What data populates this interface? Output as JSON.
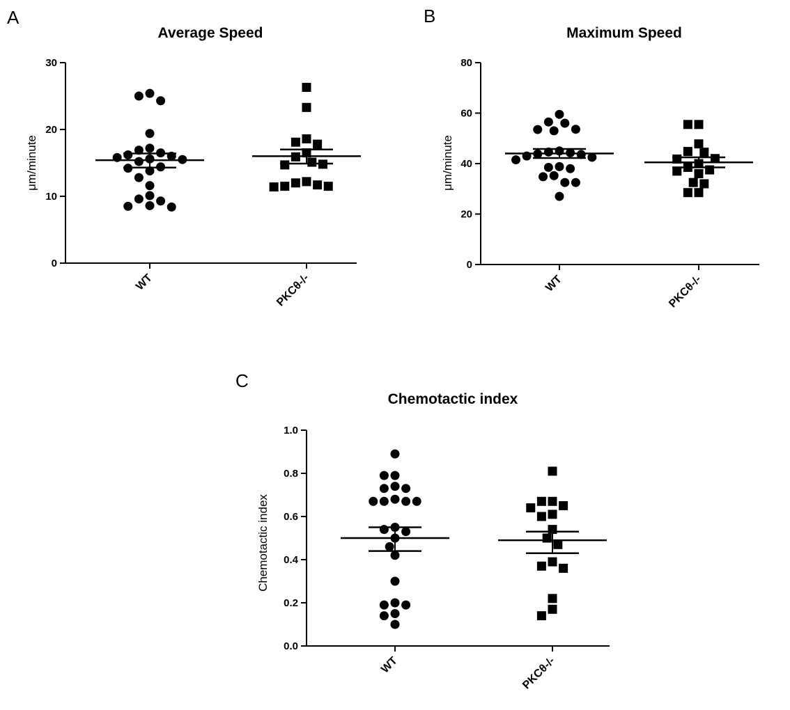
{
  "chart_data": [
    {
      "type": "scatter",
      "panel_label": "A",
      "title": "Average Speed",
      "ylabel": "μm/minute",
      "ylim": [
        0,
        30
      ],
      "yticks": [
        0,
        10,
        20,
        30
      ],
      "categories": [
        "WT",
        "PKCθ-/-"
      ],
      "series": [
        {
          "category": "WT",
          "marker": "circle",
          "values": [
            25.0,
            25.4,
            24.3,
            19.4,
            17.2,
            16.9,
            16.5,
            16.2,
            16.0,
            15.8,
            15.6,
            15.5,
            15.2,
            14.4,
            14.2,
            13.8,
            12.8,
            11.6,
            10.1,
            9.6,
            9.3,
            8.6,
            8.4,
            8.5
          ],
          "mean": 15.4,
          "sem_upper": 16.4,
          "sem_lower": 14.3
        },
        {
          "category": "PKCθ-/-",
          "marker": "square",
          "values": [
            26.3,
            23.3,
            18.6,
            18.1,
            17.8,
            16.5,
            15.9,
            15.1,
            14.8,
            14.7,
            12.2,
            12.0,
            11.7,
            11.5,
            11.4,
            11.5
          ],
          "mean": 16.0,
          "sem_upper": 17.0,
          "sem_lower": 14.9
        }
      ]
    },
    {
      "type": "scatter",
      "panel_label": "B",
      "title": "Maximum Speed",
      "ylabel": "μm/minute",
      "ylim": [
        0,
        80
      ],
      "yticks": [
        0,
        20,
        40,
        60,
        80
      ],
      "categories": [
        "WT",
        "PKCθ-/-"
      ],
      "series": [
        {
          "category": "WT",
          "marker": "circle",
          "values": [
            59.5,
            56.5,
            56.0,
            53.6,
            53.5,
            53.0,
            45.0,
            44.6,
            44.3,
            43.8,
            43.6,
            43.0,
            42.5,
            41.5,
            38.8,
            38.5,
            38.0,
            35.2,
            34.8,
            32.5,
            32.5,
            27.0
          ],
          "mean": 44.0,
          "sem_upper": 45.8,
          "sem_lower": 42.2
        },
        {
          "category": "PKCθ-/-",
          "marker": "square",
          "values": [
            55.5,
            55.5,
            47.8,
            44.8,
            44.5,
            42.0,
            41.8,
            40.0,
            38.5,
            37.5,
            37.0,
            36.0,
            32.5,
            32.0,
            28.5,
            28.5
          ],
          "mean": 40.5,
          "sem_upper": 42.5,
          "sem_lower": 38.5
        }
      ]
    },
    {
      "type": "scatter",
      "panel_label": "C",
      "title": "Chemotactic index",
      "ylabel": "Chemotactic index",
      "ylim": [
        0,
        1.0
      ],
      "yticks": [
        0.0,
        0.2,
        0.4,
        0.6,
        0.8,
        1.0
      ],
      "categories": [
        "WT",
        "PKCθ-/-"
      ],
      "series": [
        {
          "category": "WT",
          "marker": "circle",
          "values": [
            0.89,
            0.79,
            0.79,
            0.74,
            0.73,
            0.73,
            0.68,
            0.67,
            0.67,
            0.67,
            0.67,
            0.55,
            0.54,
            0.53,
            0.5,
            0.46,
            0.42,
            0.3,
            0.2,
            0.19,
            0.19,
            0.15,
            0.14,
            0.1
          ],
          "mean": 0.5,
          "sem_upper": 0.55,
          "sem_lower": 0.44
        },
        {
          "category": "PKCθ-/-",
          "marker": "square",
          "values": [
            0.81,
            0.67,
            0.67,
            0.65,
            0.64,
            0.61,
            0.6,
            0.54,
            0.5,
            0.47,
            0.39,
            0.37,
            0.36,
            0.22,
            0.17,
            0.14
          ],
          "mean": 0.49,
          "sem_upper": 0.53,
          "sem_lower": 0.43
        }
      ]
    }
  ]
}
